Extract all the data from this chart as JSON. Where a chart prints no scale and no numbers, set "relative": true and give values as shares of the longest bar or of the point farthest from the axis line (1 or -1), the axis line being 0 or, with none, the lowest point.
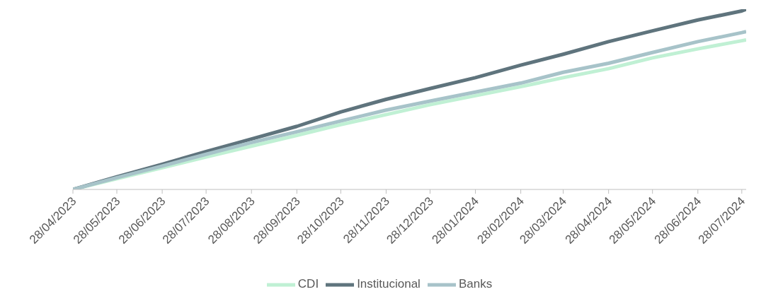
{
  "chart_data": {
    "type": "line",
    "relative": true,
    "x": [
      "2023-04-28",
      "2023-05-28",
      "2023-06-28",
      "2023-07-28",
      "2023-08-28",
      "2023-09-28",
      "2023-10-28",
      "2023-11-28",
      "2023-12-28",
      "2024-01-28",
      "2024-02-28",
      "2024-03-28",
      "2024-04-28",
      "2024-05-28",
      "2024-06-28",
      "2024-07-28",
      "2024-07-31"
    ],
    "xlim": [
      "2023-04-28",
      "2024-07-31"
    ],
    "xticks": [
      {
        "value": "2023-04-28",
        "label": "28/04/2023"
      },
      {
        "value": "2023-05-28",
        "label": "28/05/2023"
      },
      {
        "value": "2023-06-28",
        "label": "28/06/2023"
      },
      {
        "value": "2023-07-28",
        "label": "28/07/2023"
      },
      {
        "value": "2023-08-28",
        "label": "28/08/2023"
      },
      {
        "value": "2023-09-28",
        "label": "28/09/2023"
      },
      {
        "value": "2023-10-28",
        "label": "28/10/2023"
      },
      {
        "value": "2023-11-28",
        "label": "28/11/2023"
      },
      {
        "value": "2023-12-28",
        "label": "28/12/2023"
      },
      {
        "value": "2024-01-28",
        "label": "28/01/2024"
      },
      {
        "value": "2024-02-28",
        "label": "28/02/2024"
      },
      {
        "value": "2024-03-28",
        "label": "28/03/2024"
      },
      {
        "value": "2024-04-28",
        "label": "28/04/2024"
      },
      {
        "value": "2024-05-28",
        "label": "28/05/2024"
      },
      {
        "value": "2024-06-28",
        "label": "28/06/2024"
      },
      {
        "value": "2024-07-28",
        "label": "28/07/2024"
      }
    ],
    "series": [
      {
        "name": "CDI",
        "color": "#c0f0d4",
        "values": [
          0,
          0.06,
          0.12,
          0.18,
          0.24,
          0.3,
          0.36,
          0.415,
          0.47,
          0.52,
          0.57,
          0.62,
          0.67,
          0.73,
          0.78,
          0.825,
          0.83
        ]
      },
      {
        "name": "Institucional",
        "color": "#5f747d",
        "values": [
          0,
          0.07,
          0.14,
          0.21,
          0.28,
          0.35,
          0.43,
          0.5,
          0.56,
          0.62,
          0.69,
          0.75,
          0.82,
          0.88,
          0.94,
          0.99,
          1
        ]
      },
      {
        "name": "Banks",
        "color": "#a7c3c9",
        "values": [
          0,
          0.065,
          0.13,
          0.195,
          0.26,
          0.32,
          0.38,
          0.44,
          0.49,
          0.54,
          0.59,
          0.65,
          0.7,
          0.76,
          0.82,
          0.87,
          0.876
        ]
      }
    ],
    "grid": false,
    "legend": "bottom",
    "marker": "none",
    "line_style": "solid"
  }
}
